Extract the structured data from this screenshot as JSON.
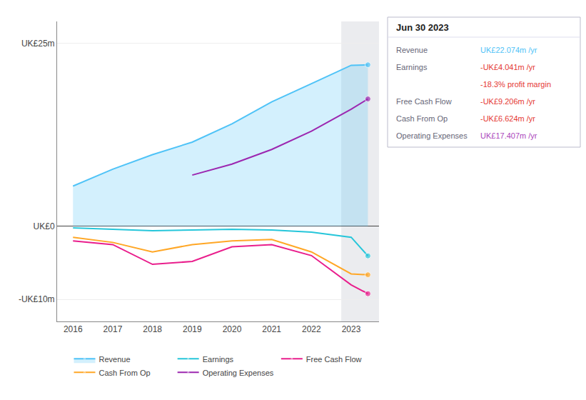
{
  "chart_data": {
    "type": "line",
    "x": [
      2016,
      2017,
      2018,
      2019,
      2020,
      2021,
      2022,
      2023,
      2023.42
    ],
    "series": [
      {
        "name": "Revenue",
        "color": "#4fc3f7",
        "type": "area",
        "values": [
          5.5,
          7.8,
          9.8,
          11.5,
          14.0,
          17.0,
          19.5,
          22.0,
          22.074
        ]
      },
      {
        "name": "Earnings",
        "color": "#26c6da",
        "values": [
          -0.2,
          -0.4,
          -0.6,
          -0.5,
          -0.4,
          -0.5,
          -0.8,
          -1.5,
          -4.041
        ]
      },
      {
        "name": "Free Cash Flow",
        "color": "#e91e8c",
        "values": [
          -2.0,
          -2.5,
          -5.2,
          -4.8,
          -2.8,
          -2.5,
          -4.0,
          -8.0,
          -9.206
        ]
      },
      {
        "name": "Cash From Op",
        "color": "#ffa726",
        "values": [
          -1.5,
          -2.2,
          -3.5,
          -2.5,
          -2.0,
          -1.8,
          -3.5,
          -6.5,
          -6.624
        ]
      },
      {
        "name": "Operating Expenses",
        "color": "#9c27b0",
        "values": [
          null,
          null,
          null,
          7.0,
          8.5,
          10.5,
          13.0,
          16.0,
          17.407
        ]
      }
    ],
    "xlim": [
      2015.6,
      2023.7
    ],
    "xticks": [
      2016,
      2017,
      2018,
      2019,
      2020,
      2021,
      2022,
      2023
    ],
    "ylim": [
      -13,
      28
    ],
    "yticks": [
      {
        "value": -10,
        "label": "-UK£10m"
      },
      {
        "value": 0,
        "label": "UK£0"
      },
      {
        "value": 25,
        "label": "UK£25m"
      }
    ],
    "grid": true,
    "legend": "bottom",
    "forecast_start": 2022.75,
    "info_box": {
      "title": "Jun 30 2023",
      "rows": [
        {
          "label": "Revenue",
          "value": "UK£22.074m /yr",
          "color": "#4fc3f7"
        },
        {
          "label": "Earnings",
          "value": "-UK£4.041m /yr",
          "color": "#e53935"
        },
        {
          "value": "-18.3% profit margin",
          "color": "#e53935"
        },
        {
          "label": "Free Cash Flow",
          "value": "-UK£9.206m /yr",
          "color": "#e53935"
        },
        {
          "label": "Cash From Op",
          "value": "-UK£6.624m /yr",
          "color": "#e53935"
        },
        {
          "label": "Operating Expenses",
          "value": "UK£17.407m /yr",
          "color": "#ab47bc"
        }
      ]
    }
  }
}
